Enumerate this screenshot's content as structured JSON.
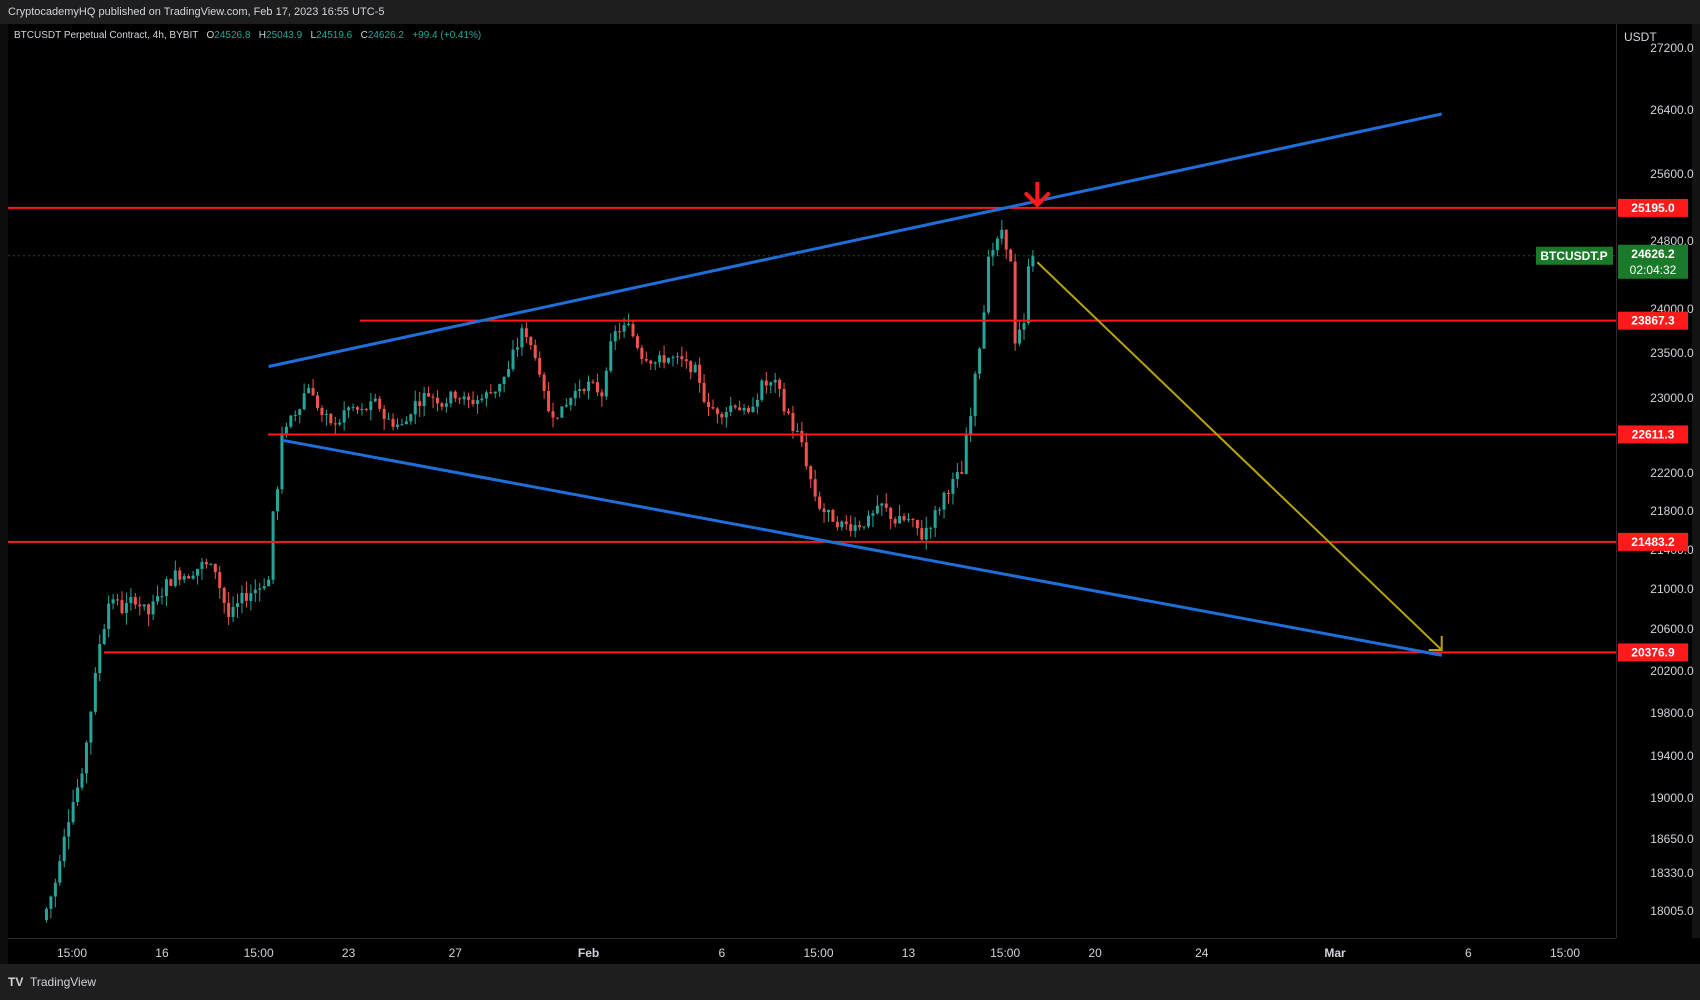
{
  "header": {
    "published": "CryptocademyHQ published on TradingView.com, Feb 17, 2023 16:55 UTC-5"
  },
  "legend": {
    "symbol": "BTCUSDT Perpetual Contract, 4h, BYBIT",
    "o_label": "O",
    "o_value": "24526.8",
    "h_label": "H",
    "h_value": "25043.9",
    "l_label": "L",
    "l_value": "24519.6",
    "c_label": "C",
    "c_value": "24626.2",
    "change": "+99.4 (+0.41%)"
  },
  "footer": {
    "brand": "TradingView",
    "logo": "TV"
  },
  "chart_data": {
    "type": "candlestick",
    "currency": "USDT",
    "price_ticks": [
      27200,
      26400,
      25600,
      24800,
      24000,
      23500,
      23000,
      22200,
      21800,
      21400,
      21000,
      20600,
      20200,
      19800,
      19400,
      19000,
      18650,
      18330,
      18005
    ],
    "price_tick_labels": [
      "27200.0",
      "26400.0",
      "25600.0",
      "24800.0",
      "24000.0",
      "23500.0",
      "23000.0",
      "22200.0",
      "21800.0",
      "21400.0",
      "21000.0",
      "20600.0",
      "20200.0",
      "19800.0",
      "19400.0",
      "19000.0",
      "18650.0",
      "18330.0",
      "18005.0"
    ],
    "time_ticks": [
      {
        "label": "15:00",
        "date": "2023-01-12 15:00"
      },
      {
        "label": "16",
        "date": "2023-01-16"
      },
      {
        "label": "15:00",
        "date": "2023-01-19 15:00"
      },
      {
        "label": "23",
        "date": "2023-01-23"
      },
      {
        "label": "27",
        "date": "2023-01-27"
      },
      {
        "label": "Feb",
        "date": "2023-02-01"
      },
      {
        "label": "6",
        "date": "2023-02-06"
      },
      {
        "label": "15:00",
        "date": "2023-02-09 15:00"
      },
      {
        "label": "13",
        "date": "2023-02-13"
      },
      {
        "label": "15:00",
        "date": "2023-02-16 15:00"
      },
      {
        "label": "20",
        "date": "2023-02-20"
      },
      {
        "label": "24",
        "date": "2023-02-24"
      },
      {
        "label": "Mar",
        "date": "2023-03-01"
      },
      {
        "label": "6",
        "date": "2023-03-06"
      },
      {
        "label": "15:00",
        "date": "2023-03-09 15:00"
      }
    ],
    "price_path": [
      [
        "2023-01-11 12:00",
        17900
      ],
      [
        "2023-01-12 00:00",
        18250
      ],
      [
        "2023-01-12 12:00",
        18900
      ],
      [
        "2023-01-13 00:00",
        19200
      ],
      [
        "2023-01-13 12:00",
        20200
      ],
      [
        "2023-01-14 00:00",
        20950
      ],
      [
        "2023-01-14 12:00",
        20800
      ],
      [
        "2023-01-15 00:00",
        20900
      ],
      [
        "2023-01-15 12:00",
        20750
      ],
      [
        "2023-01-16 00:00",
        21000
      ],
      [
        "2023-01-16 12:00",
        21150
      ],
      [
        "2023-01-17 00:00",
        21150
      ],
      [
        "2023-01-17 12:00",
        21250
      ],
      [
        "2023-01-18 00:00",
        21200
      ],
      [
        "2023-01-18 12:00",
        20700
      ],
      [
        "2023-01-19 00:00",
        20900
      ],
      [
        "2023-01-19 12:00",
        21000
      ],
      [
        "2023-01-20 00:00",
        21100
      ],
      [
        "2023-01-20 12:00",
        22650
      ],
      [
        "2023-01-21 00:00",
        22850
      ],
      [
        "2023-01-21 12:00",
        23150
      ],
      [
        "2023-01-22 00:00",
        22800
      ],
      [
        "2023-01-22 12:00",
        22700
      ],
      [
        "2023-01-23 00:00",
        22900
      ],
      [
        "2023-01-23 12:00",
        22850
      ],
      [
        "2023-01-24 00:00",
        22950
      ],
      [
        "2023-01-24 12:00",
        22750
      ],
      [
        "2023-01-25 00:00",
        22700
      ],
      [
        "2023-01-25 12:00",
        22950
      ],
      [
        "2023-01-26 00:00",
        23050
      ],
      [
        "2023-01-26 12:00",
        22950
      ],
      [
        "2023-01-27 00:00",
        23050
      ],
      [
        "2023-01-27 12:00",
        22950
      ],
      [
        "2023-01-28 00:00",
        23000
      ],
      [
        "2023-01-28 12:00",
        23100
      ],
      [
        "2023-01-29 00:00",
        23300
      ],
      [
        "2023-01-29 12:00",
        23750
      ],
      [
        "2023-01-30 00:00",
        23500
      ],
      [
        "2023-01-30 12:00",
        22850
      ],
      [
        "2023-01-31 00:00",
        22850
      ],
      [
        "2023-01-31 12:00",
        23100
      ],
      [
        "2023-02-01 00:00",
        23150
      ],
      [
        "2023-02-01 12:00",
        23050
      ],
      [
        "2023-02-02 00:00",
        23750
      ],
      [
        "2023-02-02 12:00",
        23800
      ],
      [
        "2023-02-03 00:00",
        23500
      ],
      [
        "2023-02-03 12:00",
        23400
      ],
      [
        "2023-02-04 00:00",
        23450
      ],
      [
        "2023-02-04 12:00",
        23400
      ],
      [
        "2023-02-05 00:00",
        23300
      ],
      [
        "2023-02-05 12:00",
        22900
      ],
      [
        "2023-02-06 00:00",
        22850
      ],
      [
        "2023-02-06 12:00",
        22950
      ],
      [
        "2023-02-07 00:00",
        22800
      ],
      [
        "2023-02-07 12:00",
        23150
      ],
      [
        "2023-02-08 00:00",
        23150
      ],
      [
        "2023-02-08 12:00",
        22800
      ],
      [
        "2023-02-09 00:00",
        22500
      ],
      [
        "2023-02-09 12:00",
        21900
      ],
      [
        "2023-02-10 00:00",
        21750
      ],
      [
        "2023-02-10 12:00",
        21650
      ],
      [
        "2023-02-11 00:00",
        21650
      ],
      [
        "2023-02-11 12:00",
        21700
      ],
      [
        "2023-02-12 00:00",
        21850
      ],
      [
        "2023-02-12 12:00",
        21700
      ],
      [
        "2023-02-13 00:00",
        21700
      ],
      [
        "2023-02-13 12:00",
        21550
      ],
      [
        "2023-02-14 00:00",
        21750
      ],
      [
        "2023-02-14 12:00",
        22050
      ],
      [
        "2023-02-15 00:00",
        22200
      ],
      [
        "2023-02-15 12:00",
        23300
      ],
      [
        "2023-02-16 00:00",
        24550
      ],
      [
        "2023-02-16 12:00",
        24900
      ],
      [
        "2023-02-16 20:00",
        24550
      ],
      [
        "2023-02-17 00:00",
        23650
      ],
      [
        "2023-02-17 08:00",
        23800
      ],
      [
        "2023-02-17 12:00",
        24550
      ],
      [
        "2023-02-17 16:00",
        24626.2
      ]
    ],
    "horizontal_levels": [
      25195.0,
      23867.3,
      22611.3,
      21483.2,
      20376.9
    ],
    "level_labels": [
      "25195.0",
      "23867.3",
      "22611.3",
      "21483.2",
      "20376.9"
    ],
    "trendlines": [
      {
        "from": [
          "2023-01-20 00:00",
          23350
        ],
        "to": [
          "2023-03-05 00:00",
          26350
        ]
      },
      {
        "from": [
          "2023-01-20 12:00",
          22550
        ],
        "to": [
          "2023-03-05 00:00",
          20350
        ]
      }
    ],
    "projection_arrow": {
      "from": [
        "2023-02-17 20:00",
        24550
      ],
      "to": [
        "2023-03-05 00:00",
        20400
      ]
    },
    "down_marker": {
      "at": [
        "2023-02-17 20:00",
        25195
      ]
    },
    "last_price": {
      "symbol": "BTCUSDT.P",
      "price": "24626.2",
      "countdown": "02:04:32",
      "value": 24626.2
    },
    "colors": {
      "up": "#26a69a",
      "down": "#ef5350",
      "level": "#ff1a1a",
      "trend": "#1e6fd9",
      "arrow": "#b5a20f",
      "marker": "#ff1a1a",
      "last": "#1b7a2a"
    }
  }
}
